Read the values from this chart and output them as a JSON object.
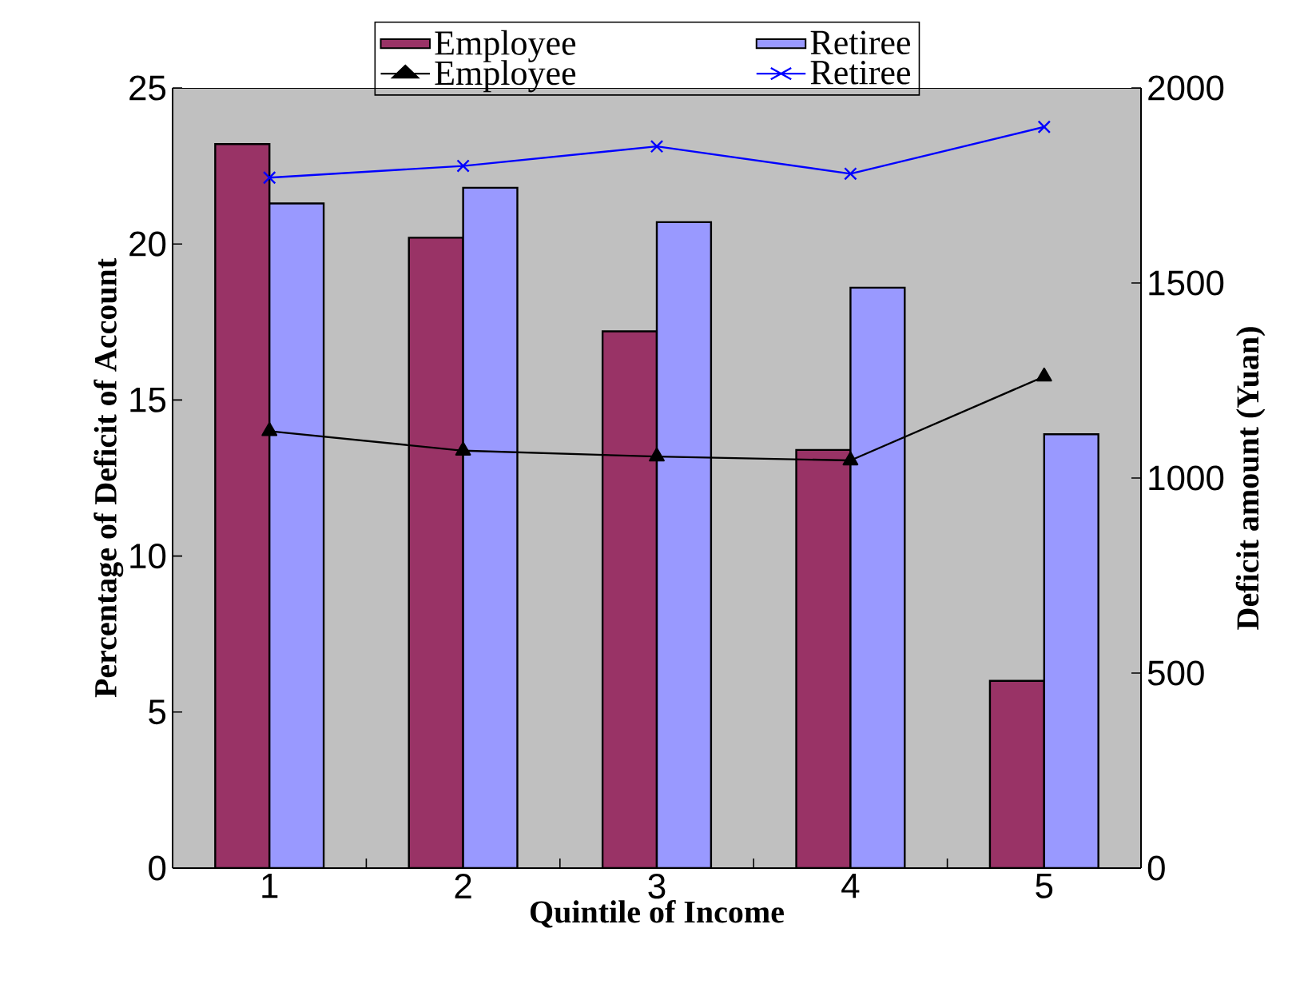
{
  "chart_data": {
    "type": "bar",
    "xlabel": "Quintile of Income",
    "ylabel": "Percentage of Deficit of Account",
    "y2label": "Deficit amount (Yuan)",
    "categories": [
      "1",
      "2",
      "3",
      "4",
      "5"
    ],
    "series": [
      {
        "name": "Employee",
        "color": "#993366",
        "values": [
          23.2,
          20.2,
          17.2,
          13.4,
          6.0
        ]
      },
      {
        "name": "Retiree",
        "color": "#9999ff",
        "values": [
          21.3,
          21.8,
          20.7,
          18.6,
          13.9
        ]
      },
      {
        "name": "Employee",
        "type": "line",
        "axis": "y2",
        "color": "#000000",
        "marker": "triangle",
        "values": [
          1120,
          1070,
          1055,
          1045,
          1260
        ]
      },
      {
        "name": "Retiree",
        "type": "line",
        "axis": "y2",
        "color": "#0000ff",
        "marker": "cross",
        "values": [
          1770,
          1800,
          1850,
          1780,
          1900
        ]
      }
    ],
    "ylim": [
      0,
      25
    ],
    "yticks": [
      0,
      5,
      10,
      15,
      20,
      25
    ],
    "y2lim": [
      0,
      2000
    ],
    "y2ticks": [
      0,
      500,
      1000,
      1500,
      2000
    ],
    "legend": "top",
    "grid": false
  }
}
